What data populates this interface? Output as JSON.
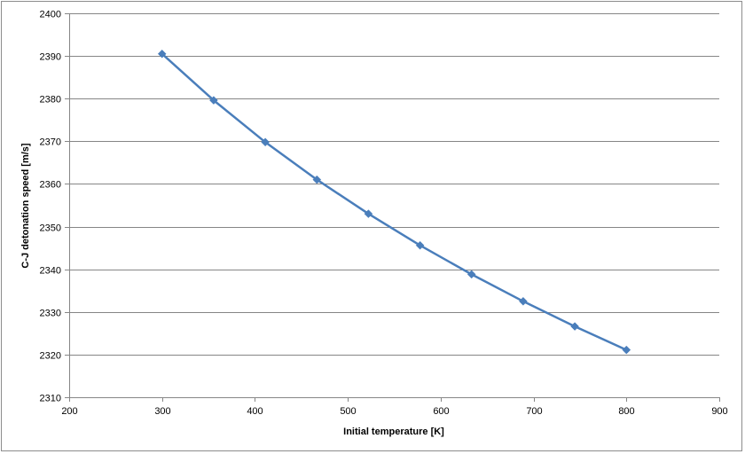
{
  "chart_data": {
    "type": "line",
    "title": "",
    "xlabel": "Initial temperature [K]",
    "ylabel": "C-J detonation speed [m/s]",
    "xlim": [
      200,
      900
    ],
    "ylim": [
      2310,
      2400
    ],
    "xticks": [
      200,
      300,
      400,
      500,
      600,
      700,
      800,
      900
    ],
    "yticks": [
      2310,
      2320,
      2330,
      2340,
      2350,
      2360,
      2370,
      2380,
      2390,
      2400
    ],
    "grid": "horizontal major gridlines",
    "legend": "none",
    "series": [
      {
        "color": "#4a7ebb",
        "marker": "diamond",
        "x": [
          300,
          355.6,
          411.1,
          466.7,
          522.2,
          577.8,
          633.3,
          688.9,
          744.4,
          800
        ],
        "y": [
          2390.5,
          2379.6,
          2369.8,
          2361.0,
          2353.0,
          2345.6,
          2338.8,
          2332.5,
          2326.6,
          2321.1
        ]
      }
    ]
  }
}
